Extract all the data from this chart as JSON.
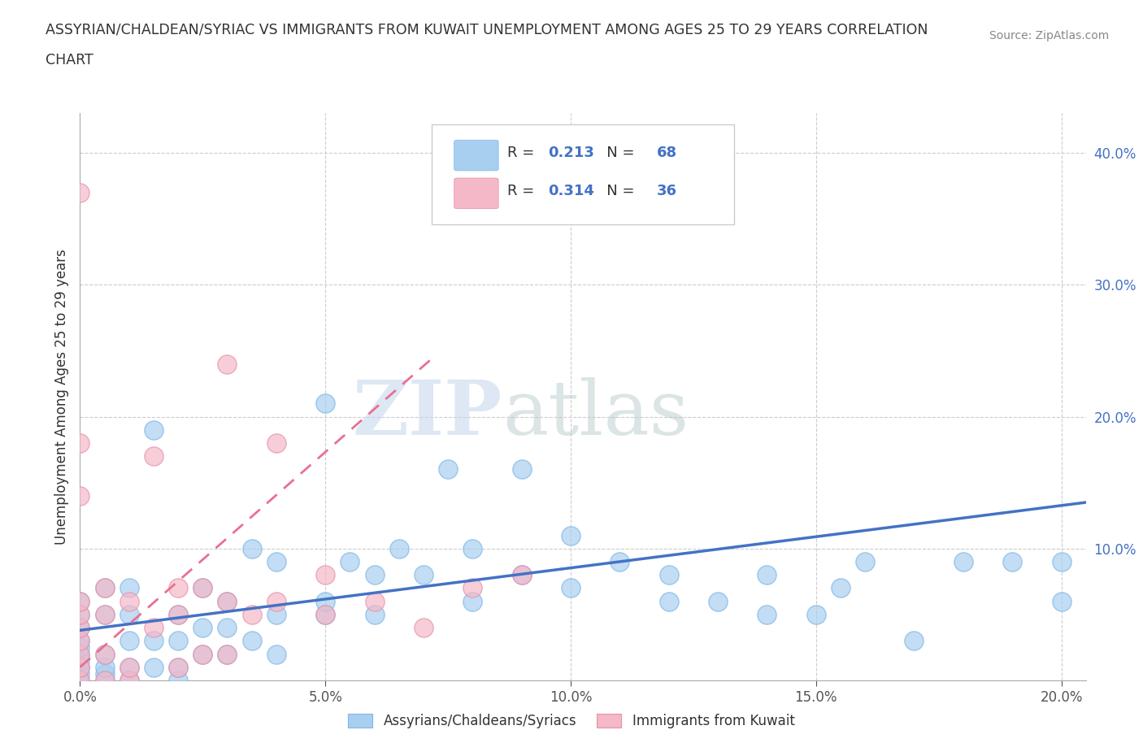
{
  "title_line1": "ASSYRIAN/CHALDEAN/SYRIAC VS IMMIGRANTS FROM KUWAIT UNEMPLOYMENT AMONG AGES 25 TO 29 YEARS CORRELATION",
  "title_line2": "CHART",
  "source_text": "Source: ZipAtlas.com",
  "ylabel": "Unemployment Among Ages 25 to 29 years",
  "xlim": [
    0.0,
    0.205
  ],
  "ylim": [
    0.0,
    0.43
  ],
  "xticks": [
    0.0,
    0.05,
    0.1,
    0.15,
    0.2
  ],
  "xticklabels": [
    "0.0%",
    "5.0%",
    "10.0%",
    "15.0%",
    "20.0%"
  ],
  "ytick_positions": [
    0.0,
    0.1,
    0.2,
    0.3,
    0.4
  ],
  "ytick_labels": [
    "",
    "10.0%",
    "20.0%",
    "30.0%",
    "40.0%"
  ],
  "blue_R": 0.213,
  "blue_N": 68,
  "pink_R": 0.314,
  "pink_N": 36,
  "blue_color": "#A8CFF0",
  "pink_color": "#F4B8C8",
  "blue_edge_color": "#7EB6E8",
  "pink_edge_color": "#E890A8",
  "blue_line_color": "#4472C4",
  "pink_line_color": "#E87090",
  "watermark_zip": "ZIP",
  "watermark_atlas": "atlas",
  "blue_scatter_x": [
    0.0,
    0.0,
    0.0,
    0.0,
    0.0,
    0.0,
    0.0,
    0.0,
    0.0,
    0.0,
    0.005,
    0.005,
    0.005,
    0.005,
    0.005,
    0.005,
    0.01,
    0.01,
    0.01,
    0.01,
    0.01,
    0.015,
    0.015,
    0.015,
    0.02,
    0.02,
    0.02,
    0.02,
    0.025,
    0.025,
    0.025,
    0.03,
    0.03,
    0.03,
    0.035,
    0.035,
    0.04,
    0.04,
    0.04,
    0.05,
    0.05,
    0.05,
    0.055,
    0.06,
    0.06,
    0.065,
    0.07,
    0.075,
    0.08,
    0.08,
    0.09,
    0.09,
    0.1,
    0.1,
    0.11,
    0.12,
    0.12,
    0.13,
    0.14,
    0.14,
    0.15,
    0.155,
    0.16,
    0.17,
    0.18,
    0.19,
    0.2,
    0.2
  ],
  "blue_scatter_y": [
    0.0,
    0.005,
    0.01,
    0.015,
    0.02,
    0.025,
    0.03,
    0.04,
    0.05,
    0.06,
    0.0,
    0.005,
    0.01,
    0.02,
    0.05,
    0.07,
    0.0,
    0.01,
    0.03,
    0.05,
    0.07,
    0.01,
    0.03,
    0.19,
    0.0,
    0.01,
    0.03,
    0.05,
    0.02,
    0.04,
    0.07,
    0.02,
    0.04,
    0.06,
    0.03,
    0.1,
    0.02,
    0.05,
    0.09,
    0.05,
    0.06,
    0.21,
    0.09,
    0.05,
    0.08,
    0.1,
    0.08,
    0.16,
    0.06,
    0.1,
    0.08,
    0.16,
    0.07,
    0.11,
    0.09,
    0.06,
    0.08,
    0.06,
    0.05,
    0.08,
    0.05,
    0.07,
    0.09,
    0.03,
    0.09,
    0.09,
    0.06,
    0.09
  ],
  "pink_scatter_x": [
    0.0,
    0.0,
    0.0,
    0.0,
    0.0,
    0.0,
    0.0,
    0.0,
    0.0,
    0.0,
    0.005,
    0.005,
    0.005,
    0.005,
    0.01,
    0.01,
    0.01,
    0.015,
    0.015,
    0.02,
    0.02,
    0.02,
    0.025,
    0.025,
    0.03,
    0.03,
    0.03,
    0.035,
    0.04,
    0.04,
    0.05,
    0.05,
    0.06,
    0.07,
    0.08,
    0.09
  ],
  "pink_scatter_y": [
    0.0,
    0.01,
    0.02,
    0.03,
    0.04,
    0.05,
    0.06,
    0.14,
    0.18,
    0.37,
    0.0,
    0.02,
    0.05,
    0.07,
    0.0,
    0.01,
    0.06,
    0.04,
    0.17,
    0.01,
    0.05,
    0.07,
    0.02,
    0.07,
    0.02,
    0.06,
    0.24,
    0.05,
    0.06,
    0.18,
    0.05,
    0.08,
    0.06,
    0.04,
    0.07,
    0.08
  ],
  "blue_trend_x0": 0.0,
  "blue_trend_x1": 0.205,
  "blue_trend_y0": 0.038,
  "blue_trend_y1": 0.135,
  "pink_trend_x0": 0.0,
  "pink_trend_x1": 0.072,
  "pink_trend_y0": 0.01,
  "pink_trend_y1": 0.245
}
